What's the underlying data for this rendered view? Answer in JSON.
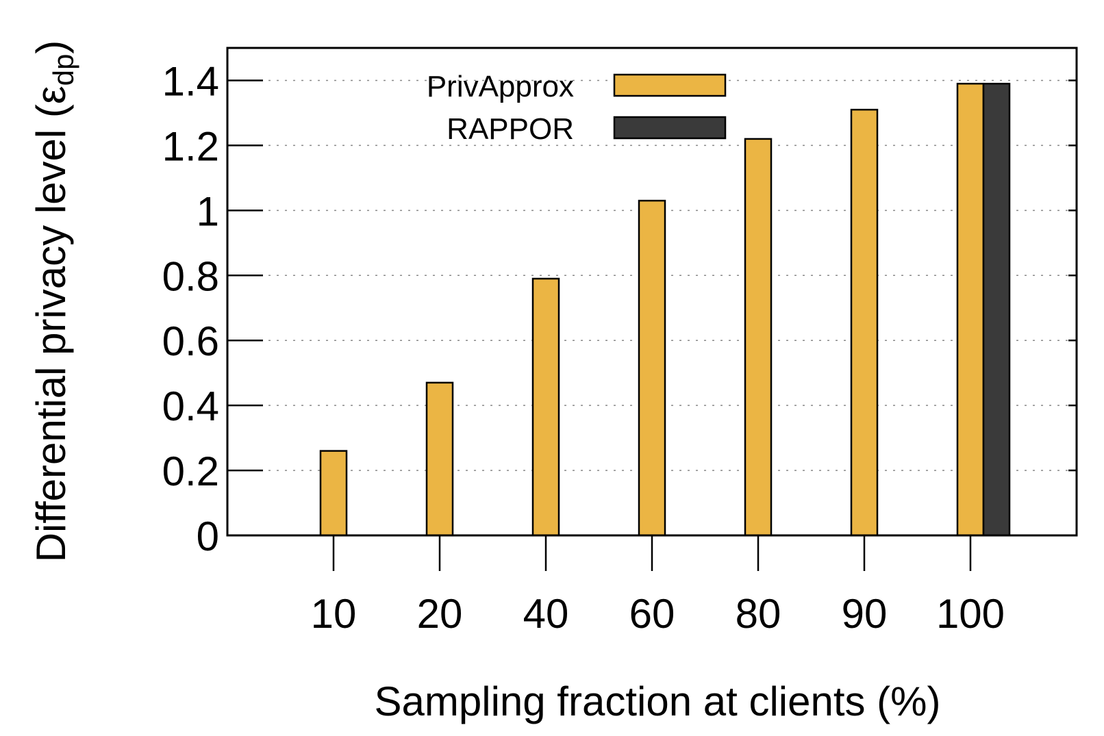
{
  "chart_data": {
    "type": "bar",
    "categories": [
      "10",
      "20",
      "40",
      "60",
      "80",
      "90",
      "100"
    ],
    "series": [
      {
        "name": "PrivApprox",
        "color": "#EBB544",
        "values": [
          0.26,
          0.47,
          0.79,
          1.03,
          1.22,
          1.31,
          1.39
        ]
      },
      {
        "name": "RAPPOR",
        "color": "#3A3A3A",
        "values": [
          null,
          null,
          null,
          null,
          null,
          null,
          1.39
        ]
      }
    ],
    "title": "",
    "xlabel": "Sampling fraction at clients (%)",
    "ylabel_main": "Differential privacy level (ε",
    "ylabel_sub": "dp",
    "ylabel_close": ")",
    "ylim": [
      0,
      1.5
    ],
    "yticks": [
      "0",
      "0.2",
      "0.4",
      "0.6",
      "0.8",
      "1",
      "1.2",
      "1.4"
    ],
    "ytick_values": [
      0,
      0.2,
      0.4,
      0.6,
      0.8,
      1.0,
      1.2,
      1.4
    ],
    "grid": "horizontal dotted",
    "legend_position": "top-center"
  }
}
